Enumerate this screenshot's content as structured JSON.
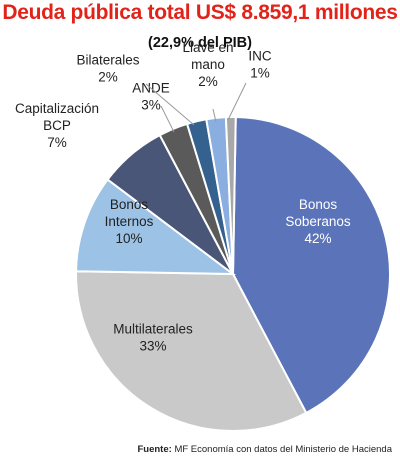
{
  "header": {
    "title": "Deuda pública total US$ 8.859,1 millones",
    "subtitle": "(22,9% del PIB)"
  },
  "source": {
    "prefix": "Fuente:",
    "text": "MF Economía con datos del Ministerio de Hacienda"
  },
  "colors": {
    "title": "#e2231a",
    "Bonos Soberanos": "#5b73b8",
    "Multilaterales": "#c9c9c9",
    "Bonos Internos": "#9cc2e5",
    "Capitalización BCP": "#4a5677",
    "ANDE": "#5a5a5a",
    "Bilaterales": "#35618f",
    "Llave en mano": "#8aaee0",
    "INC": "#a8a8a8"
  },
  "chart_data": {
    "type": "pie",
    "title": "Deuda pública total US$ 8.859,1 millones",
    "subtitle": "(22,9% del PIB)",
    "slices": [
      {
        "label": "Bonos Soberanos",
        "label_lines": [
          "Bonos",
          "Soberanos"
        ],
        "value_label": "42%",
        "value": 42
      },
      {
        "label": "Multilaterales",
        "label_lines": [
          "Multilaterales"
        ],
        "value_label": "33%",
        "value": 33
      },
      {
        "label": "Bonos Internos",
        "label_lines": [
          "Bonos",
          "Internos"
        ],
        "value_label": "10%",
        "value": 10
      },
      {
        "label": "Capitalización BCP",
        "label_lines": [
          "Capitalización",
          "BCP"
        ],
        "value_label": "7%",
        "value": 7
      },
      {
        "label": "ANDE",
        "label_lines": [
          "ANDE"
        ],
        "value_label": "3%",
        "value": 3
      },
      {
        "label": "Bilaterales",
        "label_lines": [
          "Bilaterales"
        ],
        "value_label": "2%",
        "value": 2
      },
      {
        "label": "Llave en mano",
        "label_lines": [
          "Llave en",
          "mano"
        ],
        "value_label": "2%",
        "value": 2
      },
      {
        "label": "INC",
        "label_lines": [
          "INC"
        ],
        "value_label": "1%",
        "value": 1
      }
    ]
  }
}
